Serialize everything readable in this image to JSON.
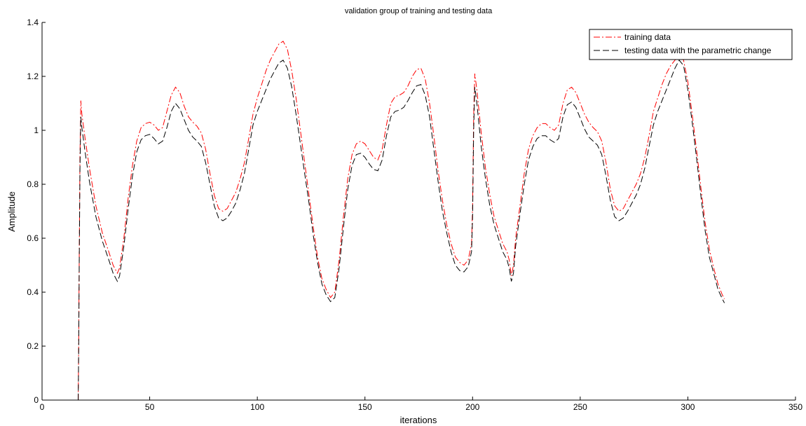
{
  "chart_data": {
    "type": "line",
    "title": "validation group of training and testing data",
    "xlabel": "iterations",
    "ylabel": "Amplitude",
    "xlim": [
      0,
      350
    ],
    "ylim": [
      0,
      1.4
    ],
    "xticks": [
      0,
      50,
      100,
      150,
      200,
      250,
      300,
      350
    ],
    "yticks": [
      0,
      0.2,
      0.4,
      0.6,
      0.8,
      1,
      1.2,
      1.4
    ],
    "grid": false,
    "legend_position": "top-right",
    "series": [
      {
        "name": "training data",
        "color": "#ff0000",
        "style": "dashdot",
        "points": [
          [
            0,
            0
          ],
          [
            16.8,
            0
          ],
          [
            17,
            0.18
          ],
          [
            17.3,
            0.55
          ],
          [
            17.6,
            0.9
          ],
          [
            18,
            1.11
          ],
          [
            18.5,
            1.06
          ],
          [
            20,
            0.97
          ],
          [
            22,
            0.86
          ],
          [
            25,
            0.72
          ],
          [
            28,
            0.62
          ],
          [
            31,
            0.55
          ],
          [
            33,
            0.5
          ],
          [
            35,
            0.47
          ],
          [
            36,
            0.49
          ],
          [
            38,
            0.6
          ],
          [
            40,
            0.75
          ],
          [
            42,
            0.87
          ],
          [
            44,
            0.96
          ],
          [
            46,
            1.01
          ],
          [
            48,
            1.025
          ],
          [
            50,
            1.03
          ],
          [
            52,
            1.02
          ],
          [
            54,
            1.0
          ],
          [
            56,
            1.01
          ],
          [
            58,
            1.07
          ],
          [
            60,
            1.13
          ],
          [
            62,
            1.16
          ],
          [
            64,
            1.14
          ],
          [
            66,
            1.09
          ],
          [
            68,
            1.05
          ],
          [
            70,
            1.03
          ],
          [
            72,
            1.015
          ],
          [
            74,
            0.99
          ],
          [
            76,
            0.93
          ],
          [
            78,
            0.84
          ],
          [
            80,
            0.76
          ],
          [
            82,
            0.71
          ],
          [
            84,
            0.7
          ],
          [
            86,
            0.71
          ],
          [
            88,
            0.74
          ],
          [
            90,
            0.77
          ],
          [
            92,
            0.82
          ],
          [
            94,
            0.88
          ],
          [
            96,
            0.97
          ],
          [
            98,
            1.06
          ],
          [
            100,
            1.12
          ],
          [
            102,
            1.17
          ],
          [
            104,
            1.22
          ],
          [
            106,
            1.26
          ],
          [
            108,
            1.29
          ],
          [
            110,
            1.32
          ],
          [
            112,
            1.33
          ],
          [
            114,
            1.3
          ],
          [
            116,
            1.22
          ],
          [
            118,
            1.12
          ],
          [
            120,
            1.0
          ],
          [
            122,
            0.88
          ],
          [
            124,
            0.76
          ],
          [
            126,
            0.64
          ],
          [
            128,
            0.53
          ],
          [
            130,
            0.45
          ],
          [
            132,
            0.41
          ],
          [
            134,
            0.38
          ],
          [
            136,
            0.4
          ],
          [
            138,
            0.52
          ],
          [
            140,
            0.68
          ],
          [
            142,
            0.82
          ],
          [
            144,
            0.91
          ],
          [
            146,
            0.95
          ],
          [
            148,
            0.96
          ],
          [
            150,
            0.95
          ],
          [
            152,
            0.925
          ],
          [
            154,
            0.9
          ],
          [
            156,
            0.89
          ],
          [
            158,
            0.93
          ],
          [
            160,
            1.02
          ],
          [
            162,
            1.1
          ],
          [
            164,
            1.125
          ],
          [
            166,
            1.13
          ],
          [
            168,
            1.14
          ],
          [
            170,
            1.165
          ],
          [
            172,
            1.2
          ],
          [
            174,
            1.225
          ],
          [
            176,
            1.23
          ],
          [
            178,
            1.19
          ],
          [
            180,
            1.1
          ],
          [
            182,
            0.98
          ],
          [
            184,
            0.85
          ],
          [
            186,
            0.74
          ],
          [
            188,
            0.65
          ],
          [
            190,
            0.58
          ],
          [
            192,
            0.53
          ],
          [
            194,
            0.51
          ],
          [
            196,
            0.5
          ],
          [
            198,
            0.52
          ],
          [
            199.5,
            0.58
          ],
          [
            200,
            0.72
          ],
          [
            200.5,
            1.05
          ],
          [
            201,
            1.21
          ],
          [
            202,
            1.15
          ],
          [
            204,
            0.99
          ],
          [
            206,
            0.86
          ],
          [
            208,
            0.76
          ],
          [
            210,
            0.68
          ],
          [
            212,
            0.63
          ],
          [
            214,
            0.58
          ],
          [
            216,
            0.55
          ],
          [
            217,
            0.52
          ],
          [
            218,
            0.46
          ],
          [
            219,
            0.5
          ],
          [
            220,
            0.6
          ],
          [
            222,
            0.72
          ],
          [
            224,
            0.84
          ],
          [
            226,
            0.93
          ],
          [
            228,
            0.98
          ],
          [
            230,
            1.01
          ],
          [
            232,
            1.025
          ],
          [
            234,
            1.025
          ],
          [
            236,
            1.01
          ],
          [
            238,
            1.0
          ],
          [
            240,
            1.02
          ],
          [
            242,
            1.1
          ],
          [
            244,
            1.15
          ],
          [
            246,
            1.16
          ],
          [
            248,
            1.14
          ],
          [
            250,
            1.1
          ],
          [
            252,
            1.06
          ],
          [
            254,
            1.03
          ],
          [
            256,
            1.01
          ],
          [
            258,
            0.995
          ],
          [
            260,
            0.96
          ],
          [
            262,
            0.88
          ],
          [
            264,
            0.78
          ],
          [
            266,
            0.72
          ],
          [
            268,
            0.7
          ],
          [
            270,
            0.71
          ],
          [
            272,
            0.74
          ],
          [
            274,
            0.77
          ],
          [
            276,
            0.8
          ],
          [
            278,
            0.84
          ],
          [
            280,
            0.9
          ],
          [
            282,
            0.98
          ],
          [
            284,
            1.07
          ],
          [
            286,
            1.12
          ],
          [
            288,
            1.17
          ],
          [
            290,
            1.21
          ],
          [
            292,
            1.24
          ],
          [
            294,
            1.26
          ],
          [
            296,
            1.275
          ],
          [
            298,
            1.26
          ],
          [
            300,
            1.18
          ],
          [
            302,
            1.06
          ],
          [
            304,
            0.93
          ],
          [
            306,
            0.79
          ],
          [
            308,
            0.66
          ],
          [
            310,
            0.56
          ],
          [
            312,
            0.49
          ],
          [
            314,
            0.43
          ],
          [
            316,
            0.39
          ],
          [
            317,
            0.375
          ]
        ]
      },
      {
        "name": "testing data with the parametric change",
        "color": "#000000",
        "style": "dashed",
        "points": [
          [
            0,
            0
          ],
          [
            16.8,
            0
          ],
          [
            17,
            0.17
          ],
          [
            17.3,
            0.52
          ],
          [
            17.6,
            0.86
          ],
          [
            18,
            1.05
          ],
          [
            18.5,
            1.01
          ],
          [
            20,
            0.92
          ],
          [
            22,
            0.81
          ],
          [
            25,
            0.68
          ],
          [
            28,
            0.59
          ],
          [
            31,
            0.52
          ],
          [
            33,
            0.47
          ],
          [
            35,
            0.44
          ],
          [
            36,
            0.46
          ],
          [
            38,
            0.57
          ],
          [
            40,
            0.71
          ],
          [
            42,
            0.83
          ],
          [
            44,
            0.92
          ],
          [
            46,
            0.965
          ],
          [
            48,
            0.98
          ],
          [
            50,
            0.985
          ],
          [
            52,
            0.97
          ],
          [
            54,
            0.95
          ],
          [
            56,
            0.96
          ],
          [
            58,
            1.01
          ],
          [
            60,
            1.07
          ],
          [
            62,
            1.1
          ],
          [
            64,
            1.08
          ],
          [
            66,
            1.04
          ],
          [
            68,
            1.0
          ],
          [
            70,
            0.975
          ],
          [
            72,
            0.96
          ],
          [
            74,
            0.94
          ],
          [
            76,
            0.88
          ],
          [
            78,
            0.8
          ],
          [
            80,
            0.72
          ],
          [
            82,
            0.675
          ],
          [
            84,
            0.665
          ],
          [
            86,
            0.675
          ],
          [
            88,
            0.7
          ],
          [
            90,
            0.73
          ],
          [
            92,
            0.78
          ],
          [
            94,
            0.84
          ],
          [
            96,
            0.93
          ],
          [
            98,
            1.02
          ],
          [
            100,
            1.07
          ],
          [
            102,
            1.11
          ],
          [
            104,
            1.15
          ],
          [
            106,
            1.19
          ],
          [
            108,
            1.22
          ],
          [
            110,
            1.25
          ],
          [
            112,
            1.26
          ],
          [
            114,
            1.23
          ],
          [
            116,
            1.16
          ],
          [
            118,
            1.06
          ],
          [
            120,
            0.95
          ],
          [
            122,
            0.84
          ],
          [
            124,
            0.73
          ],
          [
            126,
            0.61
          ],
          [
            128,
            0.51
          ],
          [
            130,
            0.43
          ],
          [
            132,
            0.39
          ],
          [
            134,
            0.365
          ],
          [
            136,
            0.38
          ],
          [
            138,
            0.49
          ],
          [
            140,
            0.64
          ],
          [
            142,
            0.78
          ],
          [
            144,
            0.87
          ],
          [
            146,
            0.91
          ],
          [
            148,
            0.915
          ],
          [
            150,
            0.9
          ],
          [
            152,
            0.875
          ],
          [
            154,
            0.855
          ],
          [
            156,
            0.85
          ],
          [
            158,
            0.89
          ],
          [
            160,
            0.98
          ],
          [
            162,
            1.05
          ],
          [
            164,
            1.07
          ],
          [
            166,
            1.075
          ],
          [
            168,
            1.085
          ],
          [
            170,
            1.11
          ],
          [
            172,
            1.14
          ],
          [
            174,
            1.165
          ],
          [
            176,
            1.17
          ],
          [
            178,
            1.13
          ],
          [
            180,
            1.05
          ],
          [
            182,
            0.93
          ],
          [
            184,
            0.81
          ],
          [
            186,
            0.7
          ],
          [
            188,
            0.62
          ],
          [
            190,
            0.55
          ],
          [
            192,
            0.5
          ],
          [
            194,
            0.48
          ],
          [
            196,
            0.475
          ],
          [
            198,
            0.495
          ],
          [
            199.5,
            0.55
          ],
          [
            200,
            0.68
          ],
          [
            200.5,
            1.0
          ],
          [
            201,
            1.16
          ],
          [
            202,
            1.1
          ],
          [
            204,
            0.94
          ],
          [
            206,
            0.82
          ],
          [
            208,
            0.72
          ],
          [
            210,
            0.65
          ],
          [
            212,
            0.6
          ],
          [
            214,
            0.55
          ],
          [
            216,
            0.52
          ],
          [
            217,
            0.49
          ],
          [
            218,
            0.44
          ],
          [
            219,
            0.47
          ],
          [
            220,
            0.57
          ],
          [
            222,
            0.69
          ],
          [
            224,
            0.8
          ],
          [
            226,
            0.89
          ],
          [
            228,
            0.94
          ],
          [
            230,
            0.97
          ],
          [
            232,
            0.98
          ],
          [
            234,
            0.98
          ],
          [
            236,
            0.965
          ],
          [
            238,
            0.955
          ],
          [
            240,
            0.97
          ],
          [
            242,
            1.05
          ],
          [
            244,
            1.095
          ],
          [
            246,
            1.105
          ],
          [
            248,
            1.085
          ],
          [
            250,
            1.045
          ],
          [
            252,
            1.005
          ],
          [
            254,
            0.975
          ],
          [
            256,
            0.96
          ],
          [
            258,
            0.945
          ],
          [
            260,
            0.91
          ],
          [
            262,
            0.83
          ],
          [
            264,
            0.74
          ],
          [
            266,
            0.68
          ],
          [
            268,
            0.665
          ],
          [
            270,
            0.675
          ],
          [
            272,
            0.7
          ],
          [
            274,
            0.73
          ],
          [
            276,
            0.76
          ],
          [
            278,
            0.8
          ],
          [
            280,
            0.86
          ],
          [
            282,
            0.94
          ],
          [
            284,
            1.02
          ],
          [
            286,
            1.07
          ],
          [
            288,
            1.11
          ],
          [
            290,
            1.15
          ],
          [
            292,
            1.19
          ],
          [
            294,
            1.23
          ],
          [
            296,
            1.26
          ],
          [
            298,
            1.24
          ],
          [
            300,
            1.15
          ],
          [
            302,
            1.03
          ],
          [
            304,
            0.9
          ],
          [
            306,
            0.76
          ],
          [
            308,
            0.63
          ],
          [
            310,
            0.53
          ],
          [
            312,
            0.47
          ],
          [
            314,
            0.41
          ],
          [
            316,
            0.375
          ],
          [
            317,
            0.36
          ]
        ]
      }
    ]
  }
}
